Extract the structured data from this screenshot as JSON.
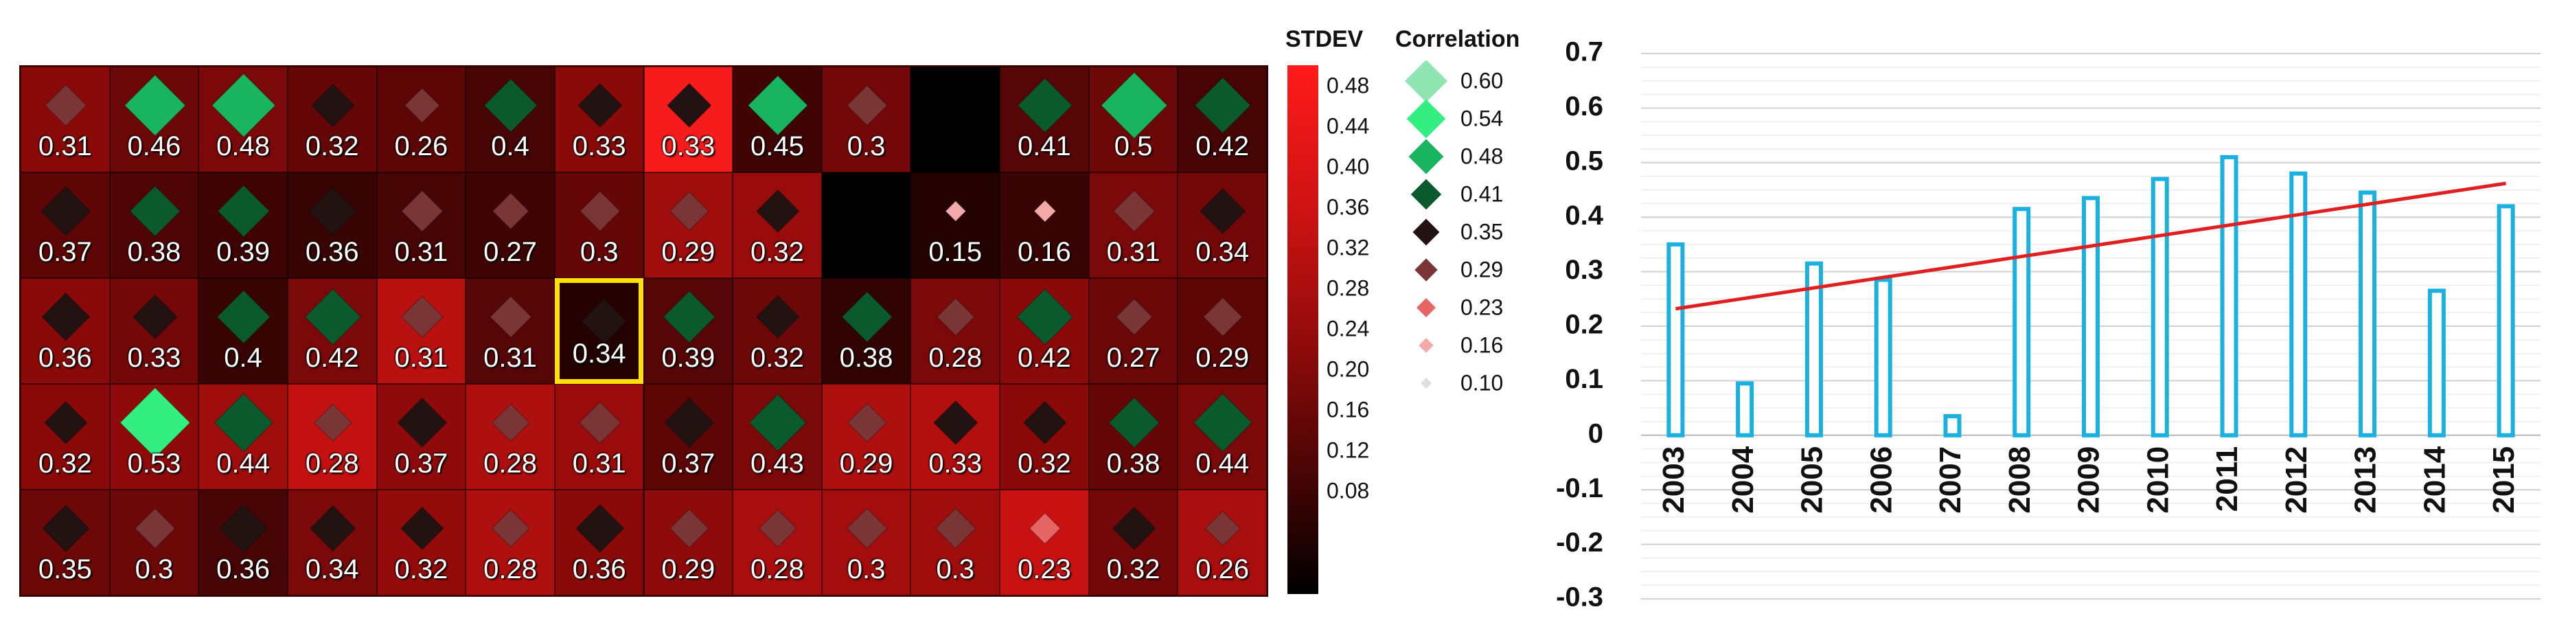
{
  "chart_data": [
    {
      "type": "heatmap",
      "title": "",
      "colorbar": {
        "label": "STDEV",
        "ticks": [
          "0.48",
          "0.44",
          "0.40",
          "0.36",
          "0.32",
          "0.28",
          "0.24",
          "0.20",
          "0.16",
          "0.12",
          "0.08"
        ],
        "range": [
          0.05,
          0.5
        ]
      },
      "correlation_legend": {
        "label": "Correlation",
        "entries": [
          {
            "label": "0.60",
            "value": 0.6,
            "color": "#8fe6b2"
          },
          {
            "label": "0.54",
            "value": 0.54,
            "color": "#33ee80"
          },
          {
            "label": "0.48",
            "value": 0.48,
            "color": "#19b45f"
          },
          {
            "label": "0.41",
            "value": 0.41,
            "color": "#0b5a2e"
          },
          {
            "label": "0.35",
            "value": 0.35,
            "color": "#231212"
          },
          {
            "label": "0.29",
            "value": 0.29,
            "color": "#7a3636"
          },
          {
            "label": "0.23",
            "value": 0.23,
            "color": "#e66666"
          },
          {
            "label": "0.16",
            "value": 0.16,
            "color": "#f5a8a8"
          },
          {
            "label": "0.10",
            "value": 0.1,
            "color": "#e0e0e0"
          }
        ]
      },
      "rows": [
        {
          "labels": [
            "0.31",
            "0.46",
            "0.48",
            "0.32",
            "0.26",
            "0.4",
            "0.33",
            "0.33",
            "0.45",
            "0.3",
            "",
            "0.41",
            "0.5",
            "0.42"
          ],
          "stdev": [
            0.24,
            0.2,
            0.22,
            0.19,
            0.18,
            0.15,
            0.24,
            0.48,
            0.14,
            0.21,
            0.05,
            0.17,
            0.2,
            0.15
          ]
        },
        {
          "labels": [
            "0.37",
            "0.38",
            "0.39",
            "0.36",
            "0.31",
            "0.27",
            "0.3",
            "0.29",
            "0.32",
            "",
            "0.15",
            "0.16",
            "0.31",
            "0.34"
          ],
          "stdev": [
            0.18,
            0.16,
            0.14,
            0.13,
            0.15,
            0.14,
            0.19,
            0.28,
            0.27,
            0.05,
            0.1,
            0.13,
            0.22,
            0.21
          ]
        },
        {
          "labels": [
            "0.36",
            "0.33",
            "0.4",
            "0.42",
            "0.31",
            "0.31",
            "0.34",
            "0.39",
            "0.32",
            "0.38",
            "0.28",
            "0.42",
            "0.27",
            "0.29"
          ],
          "stdev": [
            0.24,
            0.21,
            0.13,
            0.22,
            0.33,
            0.17,
            0.1,
            0.17,
            0.2,
            0.12,
            0.22,
            0.24,
            0.2,
            0.18
          ]
        },
        {
          "labels": [
            "0.32",
            "0.53",
            "0.44",
            "0.28",
            "0.37",
            "0.28",
            "0.31",
            "0.37",
            "0.43",
            "0.29",
            "0.33",
            "0.32",
            "0.38",
            "0.44"
          ],
          "stdev": [
            0.24,
            0.25,
            0.28,
            0.35,
            0.25,
            0.31,
            0.27,
            0.18,
            0.22,
            0.31,
            0.32,
            0.24,
            0.19,
            0.22
          ]
        },
        {
          "labels": [
            "0.35",
            "0.3",
            "0.36",
            "0.34",
            "0.32",
            "0.28",
            "0.36",
            "0.29",
            "0.28",
            "0.3",
            "0.3",
            "0.23",
            "0.32",
            "0.26"
          ],
          "stdev": [
            0.2,
            0.2,
            0.15,
            0.22,
            0.26,
            0.31,
            0.24,
            0.25,
            0.3,
            0.29,
            0.28,
            0.36,
            0.21,
            0.3
          ]
        }
      ],
      "selected_cell": {
        "row": 2,
        "col": 6
      }
    },
    {
      "type": "bar",
      "title": "",
      "xlabel": "",
      "ylabel": "",
      "categories": [
        "2003",
        "2004",
        "2005",
        "2006",
        "2007",
        "2008",
        "2009",
        "2010",
        "2011",
        "2012",
        "2013",
        "2014",
        "2015"
      ],
      "values": [
        0.35,
        0.095,
        0.315,
        0.285,
        0.035,
        0.415,
        0.435,
        0.47,
        0.51,
        0.48,
        0.445,
        0.265,
        0.42
      ],
      "ylim": [
        -0.3,
        0.7
      ],
      "yticks": [
        "0.7",
        "0.6",
        "0.5",
        "0.4",
        "0.3",
        "0.2",
        "0.1",
        "0",
        "-0.1",
        "-0.2",
        "-0.3"
      ],
      "grid": true,
      "bar_color": "#1ab0e0",
      "trendline": {
        "color": "#e02020",
        "start": 0.232,
        "end": 0.462
      }
    }
  ]
}
